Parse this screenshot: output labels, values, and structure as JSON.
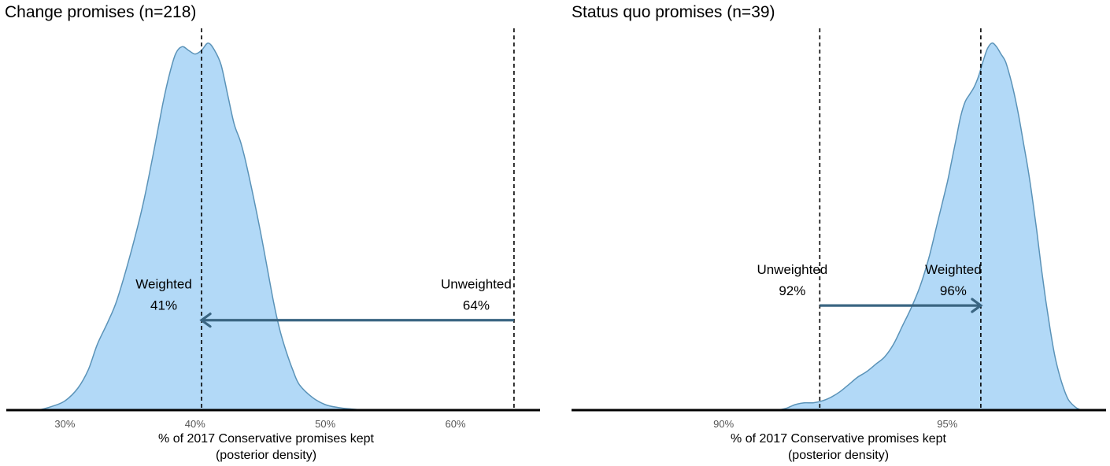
{
  "chart_data": [
    {
      "type": "area",
      "title": "Change promises (n=218)",
      "xlabel_line1": "% of 2017 Conservative promises kept",
      "xlabel_line2": "(posterior density)",
      "ylabel": "",
      "xlim": [
        0.255,
        0.665
      ],
      "ylim": [
        0,
        1.04
      ],
      "x_ticks": [
        {
          "value": 0.3,
          "label": "30%"
        },
        {
          "value": 0.4,
          "label": "40%"
        },
        {
          "value": 0.5,
          "label": "50%"
        },
        {
          "value": 0.6,
          "label": "60%"
        }
      ],
      "fill_color": "#b2d9f7",
      "line_color": "#5b93b8",
      "arrow_color": "#3a6582",
      "grid": false,
      "series": [
        {
          "x": [
            0.28,
            0.29,
            0.3,
            0.31,
            0.318,
            0.325,
            0.333,
            0.34,
            0.35,
            0.36,
            0.368,
            0.375,
            0.38,
            0.385,
            0.39,
            0.395,
            0.4,
            0.405,
            0.41,
            0.415,
            0.42,
            0.425,
            0.43,
            0.435,
            0.44,
            0.45,
            0.46,
            0.465,
            0.47,
            0.475,
            0.48,
            0.49,
            0.5,
            0.51,
            0.52,
            0.53
          ],
          "y": [
            0.0,
            0.01,
            0.025,
            0.06,
            0.11,
            0.18,
            0.24,
            0.3,
            0.42,
            0.56,
            0.7,
            0.83,
            0.91,
            0.97,
            0.99,
            0.98,
            0.97,
            0.98,
            1.0,
            0.98,
            0.94,
            0.86,
            0.78,
            0.73,
            0.66,
            0.49,
            0.3,
            0.22,
            0.16,
            0.11,
            0.07,
            0.035,
            0.015,
            0.007,
            0.003,
            0.0
          ]
        }
      ],
      "vlines": [
        {
          "value": 0.405,
          "label": "Weighted",
          "pct": "41%",
          "label_align": "end"
        },
        {
          "value": 0.645,
          "label": "Unweighted",
          "pct": "64%",
          "label_align": "end"
        }
      ],
      "arrow": {
        "from": 0.645,
        "to": 0.405,
        "y": 0.245
      }
    },
    {
      "type": "area",
      "title": "Status quo promises (n=39)",
      "xlabel_line1": "% of 2017 Conservative promises kept",
      "xlabel_line2": "(posterior density)",
      "ylabel": "",
      "xlim": [
        0.866,
        0.9855
      ],
      "ylim": [
        0,
        1.04
      ],
      "x_ticks": [
        {
          "value": 0.9,
          "label": "90%"
        },
        {
          "value": 0.95,
          "label": "95%"
        }
      ],
      "fill_color": "#b2d9f7",
      "line_color": "#5b93b8",
      "arrow_color": "#3a6582",
      "grid": false,
      "series": [
        {
          "x": [
            0.912,
            0.914,
            0.916,
            0.918,
            0.92,
            0.922,
            0.924,
            0.926,
            0.928,
            0.93,
            0.932,
            0.934,
            0.936,
            0.938,
            0.94,
            0.942,
            0.944,
            0.946,
            0.948,
            0.95,
            0.951,
            0.952,
            0.953,
            0.954,
            0.955,
            0.956,
            0.957,
            0.958,
            0.959,
            0.96,
            0.961,
            0.962,
            0.963,
            0.964,
            0.965,
            0.966,
            0.967,
            0.968,
            0.969,
            0.97,
            0.971,
            0.972,
            0.973,
            0.974,
            0.975,
            0.976,
            0.977,
            0.978,
            0.979,
            0.98
          ],
          "y": [
            0.0,
            0.005,
            0.015,
            0.02,
            0.02,
            0.025,
            0.035,
            0.05,
            0.07,
            0.09,
            0.105,
            0.125,
            0.145,
            0.18,
            0.23,
            0.28,
            0.34,
            0.42,
            0.52,
            0.62,
            0.68,
            0.74,
            0.8,
            0.84,
            0.86,
            0.88,
            0.91,
            0.95,
            0.985,
            1.0,
            0.99,
            0.97,
            0.95,
            0.91,
            0.86,
            0.8,
            0.73,
            0.66,
            0.58,
            0.49,
            0.39,
            0.3,
            0.22,
            0.15,
            0.1,
            0.06,
            0.03,
            0.015,
            0.005,
            0.0
          ]
        }
      ],
      "vlines": [
        {
          "value": 0.9215,
          "label": "Unweighted",
          "pct": "92%",
          "label_align": "middle"
        },
        {
          "value": 0.9575,
          "label": "Weighted",
          "pct": "96%",
          "label_align": "middle"
        }
      ],
      "arrow": {
        "from": 0.9215,
        "to": 0.9575,
        "y": 0.285
      }
    }
  ]
}
